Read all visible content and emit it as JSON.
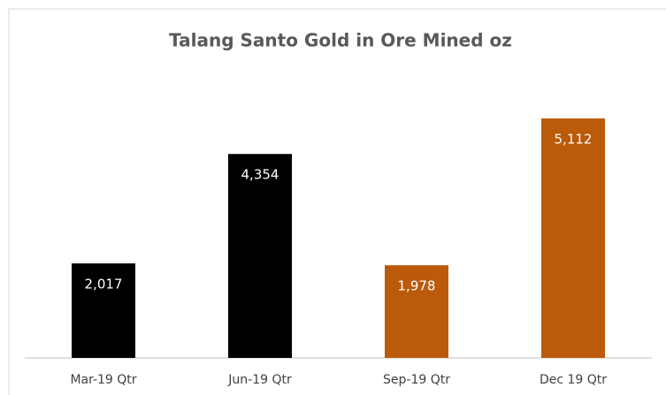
{
  "chart_data": {
    "type": "bar",
    "title": "Talang Santo Gold in Ore Mined oz",
    "categories": [
      "Mar-19 Qtr",
      "Jun-19 Qtr",
      "Sep-19 Qtr",
      "Dec 19 Qtr"
    ],
    "values": [
      2017,
      4354,
      1978,
      5112
    ],
    "value_labels": [
      "2,017",
      "4,354",
      "1,978",
      "5,112"
    ],
    "colors": [
      "#000000",
      "#000000",
      "#bb5a0a",
      "#bb5a0a"
    ],
    "ylim": [
      0,
      6000
    ]
  }
}
